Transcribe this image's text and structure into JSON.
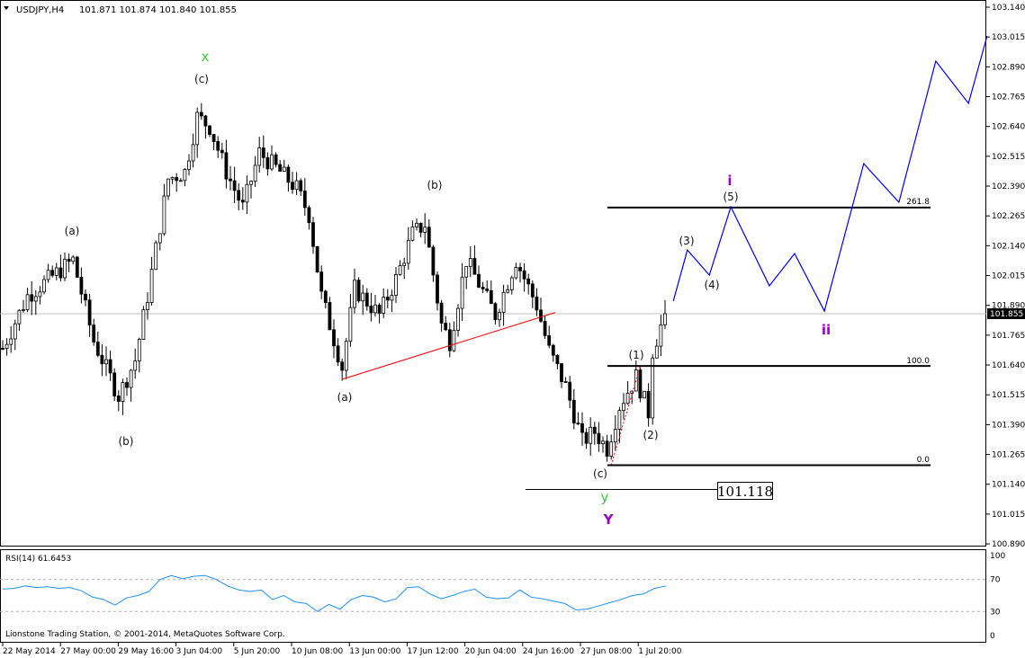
{
  "header": {
    "symbol_timeframe": "USDJPY,H4",
    "ohlc": "101.871 101.874 101.840 101.855"
  },
  "footer": {
    "copyright": "Lionstone Trading Station, © 2001-2014, MetaQuotes Software Corp."
  },
  "chart_data": [
    {
      "type": "candlestick",
      "symbol": "USDJPY",
      "timeframe": "H4",
      "last_price": 101.855,
      "ylim": [
        100.89,
        103.14
      ],
      "y_ticks": [
        "103.140",
        "103.015",
        "102.890",
        "102.765",
        "102.640",
        "102.515",
        "102.390",
        "102.265",
        "102.140",
        "102.015",
        "101.890",
        "101.765",
        "101.640",
        "101.515",
        "101.390",
        "101.265",
        "101.140",
        "101.015",
        "100.890"
      ],
      "x_ticks": [
        "22 May 2014",
        "27 May 00:00",
        "29 May 16:00",
        "3 Jun 04:00",
        "5 Jun 20:00",
        "10 Jun 08:00",
        "13 Jun 00:00",
        "17 Jun 12:00",
        "20 Jun 04:00",
        "24 Jun 16:00",
        "27 Jun 08:00",
        "1 Jul 20:00"
      ],
      "close_path_bar_price": [
        [
          0,
          101.71
        ],
        [
          6,
          101.93
        ],
        [
          17,
          102.08
        ],
        [
          22,
          101.74
        ],
        [
          28,
          101.51
        ],
        [
          32,
          101.66
        ],
        [
          35,
          101.93
        ],
        [
          40,
          102.42
        ],
        [
          44,
          102.45
        ],
        [
          47,
          102.68
        ],
        [
          50,
          102.64
        ],
        [
          54,
          102.45
        ],
        [
          58,
          102.3
        ],
        [
          62,
          102.53
        ],
        [
          67,
          102.45
        ],
        [
          71,
          102.38
        ],
        [
          74,
          102.27
        ],
        [
          77,
          101.93
        ],
        [
          82,
          101.63
        ],
        [
          85,
          101.96
        ],
        [
          91,
          101.85
        ],
        [
          95,
          102.0
        ],
        [
          99,
          102.19
        ],
        [
          102,
          102.23
        ],
        [
          106,
          101.81
        ],
        [
          108,
          101.74
        ],
        [
          112,
          102.08
        ],
        [
          119,
          101.85
        ],
        [
          124,
          102.08
        ],
        [
          129,
          101.89
        ],
        [
          132,
          101.7
        ],
        [
          136,
          101.55
        ],
        [
          140,
          101.32
        ],
        [
          143,
          101.36
        ],
        [
          146,
          101.29
        ],
        [
          149,
          101.47
        ],
        [
          153,
          101.59
        ],
        [
          156,
          101.44
        ],
        [
          157,
          101.7
        ],
        [
          160,
          101.855
        ]
      ],
      "projection_bar_price": [
        [
          162,
          101.908
        ],
        [
          165.4,
          102.122
        ],
        [
          170.7,
          102.017
        ],
        [
          175.9,
          102.303
        ],
        [
          185.2,
          101.972
        ],
        [
          191.3,
          102.107
        ],
        [
          198.5,
          101.866
        ],
        [
          208,
          102.484
        ],
        [
          216.5,
          102.322
        ],
        [
          225.4,
          102.914
        ],
        [
          233.3,
          102.737
        ],
        [
          237.8,
          103.019
        ]
      ],
      "projection_color": "#0000ff",
      "trendline_bar_price": [
        [
          82,
          101.58
        ],
        [
          133.5,
          101.86
        ]
      ],
      "trendline_color": "#ff0000",
      "fib_levels": [
        {
          "label": "261.8",
          "price": 102.3
        },
        {
          "label": "100.0",
          "price": 101.636
        },
        {
          "label": "0.0",
          "price": 101.22
        }
      ],
      "support_line": {
        "price": 101.118,
        "label": "101.118"
      },
      "wave_labels": {
        "x_major": "x",
        "c1": "(c)",
        "a1": "(a)",
        "b1": "(b)",
        "b2": "(b)",
        "a2": "(a)",
        "c2": "(c)",
        "y_minor": "y",
        "Y_major": "Y",
        "w1": "(1)",
        "w2": "(2)",
        "w3": "(3)",
        "w4": "(4)",
        "w5": "(5)",
        "i": "i",
        "ii": "ii"
      },
      "colors": {
        "green": "#3cc83c",
        "purple": "#9900cc",
        "text": "#111111"
      }
    },
    {
      "type": "line",
      "title": "RSI(14) 61.6453",
      "ylim": [
        0,
        100
      ],
      "y_ticks": [
        "100",
        "70",
        "30",
        "0"
      ],
      "levels": [
        70,
        30
      ],
      "color": "#1e90ff",
      "values": [
        58,
        59,
        62,
        60,
        61,
        59,
        60,
        56,
        48,
        45,
        38,
        47,
        50,
        55,
        70,
        75,
        71,
        74,
        75,
        70,
        62,
        57,
        55,
        57,
        45,
        50,
        42,
        40,
        30,
        39,
        33,
        45,
        50,
        48,
        42,
        46,
        60,
        61,
        52,
        46,
        50,
        55,
        58,
        48,
        46,
        47,
        57,
        48,
        46,
        43,
        40,
        32,
        33,
        37,
        41,
        45,
        50,
        52,
        59,
        62
      ]
    }
  ]
}
